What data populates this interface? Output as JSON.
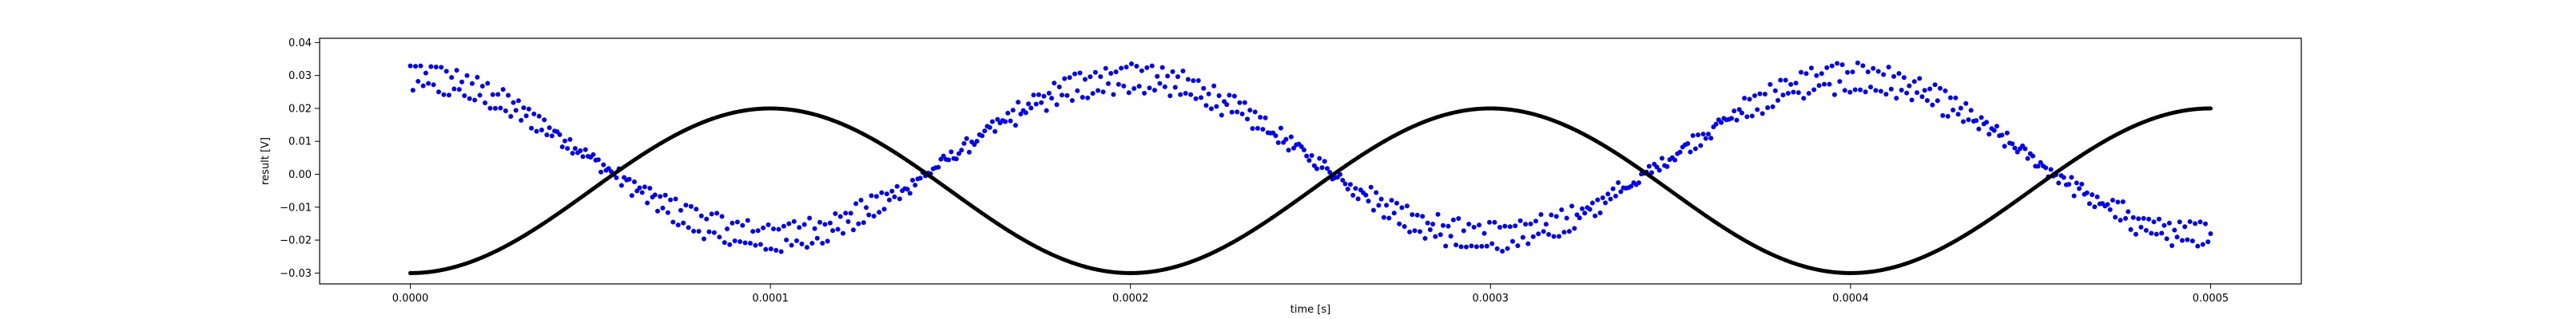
{
  "chart_data": {
    "type": "scatter",
    "title": "",
    "xlabel": "time [s]",
    "ylabel": "result [V]",
    "xlim": [
      -2.52e-05,
      0.0005252
    ],
    "ylim": [
      -0.0333,
      0.0413
    ],
    "xticks": [
      0.0,
      0.0001,
      0.0002,
      0.0003,
      0.0004,
      0.0005
    ],
    "xtick_labels": [
      "0.0000",
      "0.0001",
      "0.0002",
      "0.0003",
      "0.0004",
      "0.0005"
    ],
    "yticks": [
      -0.03,
      -0.02,
      -0.01,
      0.0,
      0.01,
      0.02,
      0.03,
      0.04
    ],
    "ytick_labels": [
      "−0.03",
      "−0.02",
      "−0.01",
      "0.00",
      "0.01",
      "0.02",
      "0.03",
      "0.04"
    ],
    "grid": false,
    "legend": "none",
    "series": [
      {
        "color": "#0000ff",
        "marker": "dot",
        "description_of_shape": "noisy sinusoid, period 0.0002 s, centre 0.005 V, amplitude about 0.024 V, phase maximum at t=0",
        "key_points": [
          {
            "x": 0.0,
            "y": 0.0293
          },
          {
            "x": 5e-05,
            "y": 0.005
          },
          {
            "x": 0.0001,
            "y": -0.019
          },
          {
            "x": 0.00015,
            "y": 0.005
          },
          {
            "x": 0.0002,
            "y": 0.0293
          },
          {
            "x": 0.00025,
            "y": 0.005
          },
          {
            "x": 0.0003,
            "y": -0.019
          },
          {
            "x": 0.00035,
            "y": 0.005
          },
          {
            "x": 0.0004,
            "y": 0.0293
          },
          {
            "x": 0.00045,
            "y": 0.005
          },
          {
            "x": 0.0005,
            "y": -0.019
          }
        ],
        "n_points": 700,
        "noise_amplitude": 0.006
      },
      {
        "color": "#000000",
        "marker": "dot",
        "description_of_shape": "smooth sinusoid, period 0.0002 s, minimum -0.03 V at t=0, maximum 0.02 V at t=0.0001",
        "key_points": [
          {
            "x": 0.0,
            "y": -0.03
          },
          {
            "x": 5e-05,
            "y": -0.005
          },
          {
            "x": 0.0001,
            "y": 0.02
          },
          {
            "x": 0.00015,
            "y": -0.005
          },
          {
            "x": 0.0002,
            "y": -0.03
          },
          {
            "x": 0.00025,
            "y": -0.005
          },
          {
            "x": 0.0003,
            "y": 0.02
          },
          {
            "x": 0.00035,
            "y": -0.005
          },
          {
            "x": 0.0004,
            "y": -0.03
          },
          {
            "x": 0.00045,
            "y": -0.005
          },
          {
            "x": 0.0005,
            "y": 0.02
          }
        ],
        "n_points": 1000
      }
    ]
  }
}
